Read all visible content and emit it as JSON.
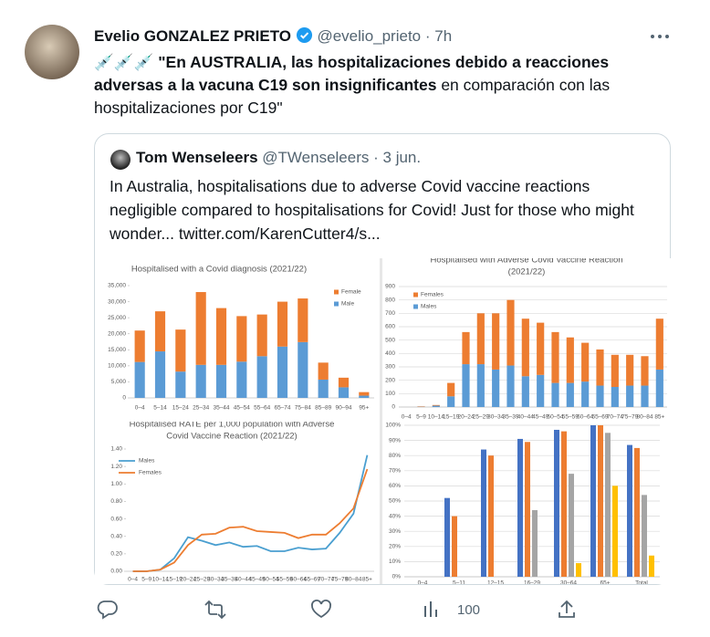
{
  "tweet": {
    "author": "Evelio GONZALEZ PRIETO",
    "handle": "@evelio_prieto",
    "separator": "·",
    "time": "7h",
    "emoji": "💉💉💉",
    "text_bold": "\"En AUSTRALIA, las hospitalizaciones debido a reacciones adversas a la vacuna C19 son insignificantes",
    "text_rest": " en comparación con las hospitalizaciones por C19\"",
    "quote": {
      "author": "Tom Wenseleers",
      "handle": "@TWenseleers",
      "separator": "·",
      "time": "3 jun.",
      "text": "In Australia, hospitalisations due to adverse Covid vaccine reactions negligible compared to hospitalisations for Covid! Just for those who might wonder...  twitter.com/KarenCutter4/s..."
    },
    "actions": {
      "views": "100"
    }
  },
  "chart_data": [
    {
      "type": "bar",
      "stacked": true,
      "grid": false,
      "title": "Hospitalised with a Covid diagnosis (2021/22)",
      "categories": [
        "0–4",
        "5–14",
        "15–24",
        "25–34",
        "35–44",
        "45–54",
        "55–64",
        "65–74",
        "75–84",
        "85–89",
        "90–94",
        "95+"
      ],
      "series": [
        {
          "name": "Female",
          "color": "#ed7d31",
          "values": [
            9800,
            12500,
            13100,
            22700,
            17700,
            14200,
            13000,
            14000,
            13600,
            5300,
            3000,
            1100
          ]
        },
        {
          "name": "Male",
          "color": "#5b9bd5",
          "values": [
            11200,
            14500,
            8200,
            10300,
            10300,
            11300,
            13000,
            16000,
            17400,
            5700,
            3300,
            700
          ]
        }
      ],
      "ylim": [
        0,
        35000
      ],
      "yticks": [
        0,
        {
          "value": 5000,
          "label": "5,000"
        },
        {
          "value": 10000,
          "label": "10,000"
        },
        {
          "value": 15000,
          "label": "15,000"
        },
        {
          "value": 20000,
          "label": "20,000"
        },
        {
          "value": 25000,
          "label": "25,000"
        },
        {
          "value": 30000,
          "label": "30,000"
        },
        {
          "value": 35000,
          "label": "35,000"
        }
      ]
    },
    {
      "type": "bar",
      "stacked": true,
      "grid": true,
      "title": "Hospitalised with Adverse Covid Vaccine Reaction",
      "subtitle": "(2021/22)",
      "categories": [
        "0–4",
        "5–9",
        "10–14",
        "15–19",
        "20–24",
        "25–29",
        "30–34",
        "35–39",
        "40–44",
        "45–49",
        "50–54",
        "55–59",
        "60–64",
        "65–69",
        "70–74",
        "75–79",
        "80–84",
        "85+"
      ],
      "series": [
        {
          "name": "Females",
          "color": "#ed7d31",
          "values": [
            0,
            3,
            5,
            100,
            240,
            380,
            420,
            490,
            430,
            390,
            380,
            340,
            290,
            270,
            240,
            230,
            220,
            380
          ]
        },
        {
          "name": "Males",
          "color": "#5b9bd5",
          "values": [
            0,
            2,
            10,
            80,
            320,
            320,
            280,
            310,
            230,
            240,
            180,
            180,
            190,
            160,
            150,
            160,
            160,
            280
          ]
        }
      ],
      "ylim": [
        0,
        900
      ],
      "yticks": [
        0,
        100,
        200,
        300,
        400,
        500,
        600,
        700,
        800,
        900
      ]
    },
    {
      "type": "line",
      "grid": false,
      "title": "Hospitalised RATE per 1,000 population with Adverse",
      "subtitle": "Covid Vaccine Reaction (2021/22)",
      "categories": [
        "0–4",
        "5–9",
        "10–14",
        "15–19",
        "20–24",
        "25–29",
        "30–34",
        "35–39",
        "40–44",
        "45–49",
        "50–54",
        "55–59",
        "60–64",
        "65–69",
        "70–74",
        "75–79",
        "80–84",
        "85+"
      ],
      "series": [
        {
          "name": "Males",
          "color": "#4a9fd0",
          "values": [
            0,
            0,
            0.02,
            0.15,
            0.39,
            0.35,
            0.3,
            0.33,
            0.28,
            0.29,
            0.23,
            0.23,
            0.27,
            0.25,
            0.26,
            0.44,
            0.66,
            1.33
          ]
        },
        {
          "name": "Females",
          "color": "#ed7d31",
          "values": [
            0,
            0,
            0.02,
            0.1,
            0.3,
            0.42,
            0.43,
            0.5,
            0.51,
            0.46,
            0.45,
            0.44,
            0.38,
            0.42,
            0.42,
            0.55,
            0.72,
            1.17
          ]
        }
      ],
      "ylim": [
        0,
        1.4
      ],
      "yticks": [
        {
          "value": 0,
          "label": "0.00"
        },
        {
          "value": 0.2,
          "label": "0.20"
        },
        {
          "value": 0.4,
          "label": "0.40"
        },
        {
          "value": 0.6,
          "label": "0.60"
        },
        {
          "value": 0.8,
          "label": "0.80"
        },
        {
          "value": 1,
          "label": "1.00"
        },
        {
          "value": 1.2,
          "label": "1.20"
        },
        {
          "value": 1.4,
          "label": "1.40"
        }
      ]
    },
    {
      "type": "bar",
      "stacked": false,
      "grid": true,
      "categories": [
        "0–4",
        "5–11",
        "12–15",
        "16–29",
        "30–64",
        "65+",
        "Total"
      ],
      "series": [
        {
          "color": "#4472c4",
          "values": [
            null,
            52,
            84,
            91,
            97,
            100,
            87
          ]
        },
        {
          "color": "#ed7d31",
          "values": [
            null,
            40,
            80,
            89,
            96,
            100,
            85
          ]
        },
        {
          "color": "#a5a5a5",
          "values": [
            null,
            null,
            null,
            44,
            68,
            95,
            54
          ]
        },
        {
          "color": "#ffc000",
          "values": [
            null,
            null,
            null,
            null,
            9,
            60,
            14
          ]
        }
      ],
      "ylim": [
        0,
        100
      ],
      "yticks": [
        {
          "value": 0,
          "label": "0%"
        },
        {
          "value": 10,
          "label": "10%"
        },
        {
          "value": 20,
          "label": "20%"
        },
        {
          "value": 30,
          "label": "30%"
        },
        {
          "value": 40,
          "label": "40%"
        },
        {
          "value": 50,
          "label": "50%"
        },
        {
          "value": 60,
          "label": "60%"
        },
        {
          "value": 70,
          "label": "70%"
        },
        {
          "value": 80,
          "label": "80%"
        },
        {
          "value": 90,
          "label": "90%"
        },
        {
          "value": 100,
          "label": "100%"
        }
      ]
    }
  ]
}
